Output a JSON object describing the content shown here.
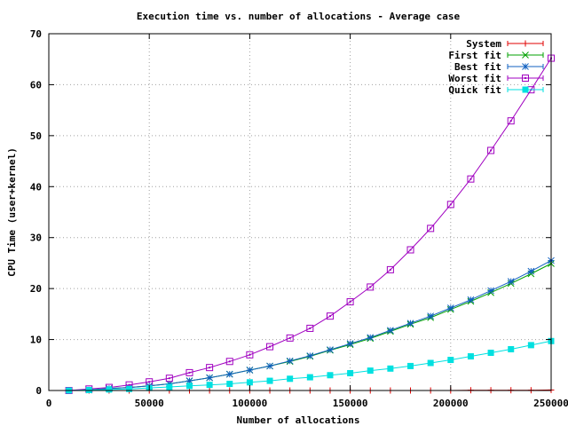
{
  "chart_data": {
    "type": "line",
    "title": "Execution time vs. number of allocations - Average case",
    "xlabel": "Number of allocations",
    "ylabel": "CPU Time (user+kernel)",
    "xlim": [
      0,
      250000
    ],
    "ylim": [
      0,
      70
    ],
    "x_ticks": [
      0,
      50000,
      100000,
      150000,
      200000,
      250000
    ],
    "y_ticks": [
      0,
      10,
      20,
      30,
      40,
      50,
      60,
      70
    ],
    "grid": true,
    "legend_position": "top-right",
    "x": [
      10000,
      20000,
      30000,
      40000,
      50000,
      60000,
      70000,
      80000,
      90000,
      100000,
      110000,
      120000,
      130000,
      140000,
      150000,
      160000,
      170000,
      180000,
      190000,
      200000,
      210000,
      220000,
      230000,
      240000,
      250000
    ],
    "series": [
      {
        "name": "System",
        "color": "#e00000",
        "marker": "plus",
        "values": [
          0.0,
          0.0,
          0.0,
          0.0,
          0.0,
          0.0,
          0.0,
          0.0,
          0.0,
          0.0,
          0.0,
          0.0,
          0.0,
          0.0,
          0.0,
          0.0,
          0.0,
          0.0,
          0.0,
          0.0,
          0.05,
          0.05,
          0.05,
          0.05,
          0.1
        ]
      },
      {
        "name": "First fit",
        "color": "#00a000",
        "marker": "cross",
        "values": [
          0.0,
          0.1,
          0.4,
          0.6,
          0.9,
          1.3,
          1.9,
          2.5,
          3.2,
          4.0,
          4.8,
          5.7,
          6.7,
          7.9,
          9.0,
          10.2,
          11.6,
          13.0,
          14.3,
          15.9,
          17.5,
          19.2,
          21.0,
          22.9,
          24.9
        ]
      },
      {
        "name": "Best fit",
        "color": "#1060c0",
        "marker": "star",
        "values": [
          0.0,
          0.1,
          0.4,
          0.6,
          0.9,
          1.3,
          1.9,
          2.5,
          3.2,
          4.0,
          4.8,
          5.8,
          6.8,
          8.0,
          9.2,
          10.4,
          11.8,
          13.2,
          14.6,
          16.2,
          17.8,
          19.6,
          21.4,
          23.4,
          25.5
        ]
      },
      {
        "name": "Worst fit",
        "color": "#a000c0",
        "marker": "square-open",
        "values": [
          0.0,
          0.3,
          0.6,
          1.1,
          1.7,
          2.4,
          3.5,
          4.5,
          5.7,
          7.0,
          8.6,
          10.3,
          12.2,
          14.6,
          17.4,
          20.3,
          23.7,
          27.6,
          31.8,
          36.5,
          41.5,
          47.1,
          52.9,
          59.0,
          65.2
        ]
      },
      {
        "name": "Quick fit",
        "color": "#00e0e0",
        "marker": "square-filled",
        "values": [
          0.0,
          0.1,
          0.2,
          0.3,
          0.5,
          0.7,
          0.9,
          1.1,
          1.3,
          1.6,
          1.9,
          2.3,
          2.6,
          3.0,
          3.4,
          3.9,
          4.3,
          4.8,
          5.4,
          6.0,
          6.7,
          7.4,
          8.1,
          8.9,
          9.7
        ]
      }
    ]
  }
}
